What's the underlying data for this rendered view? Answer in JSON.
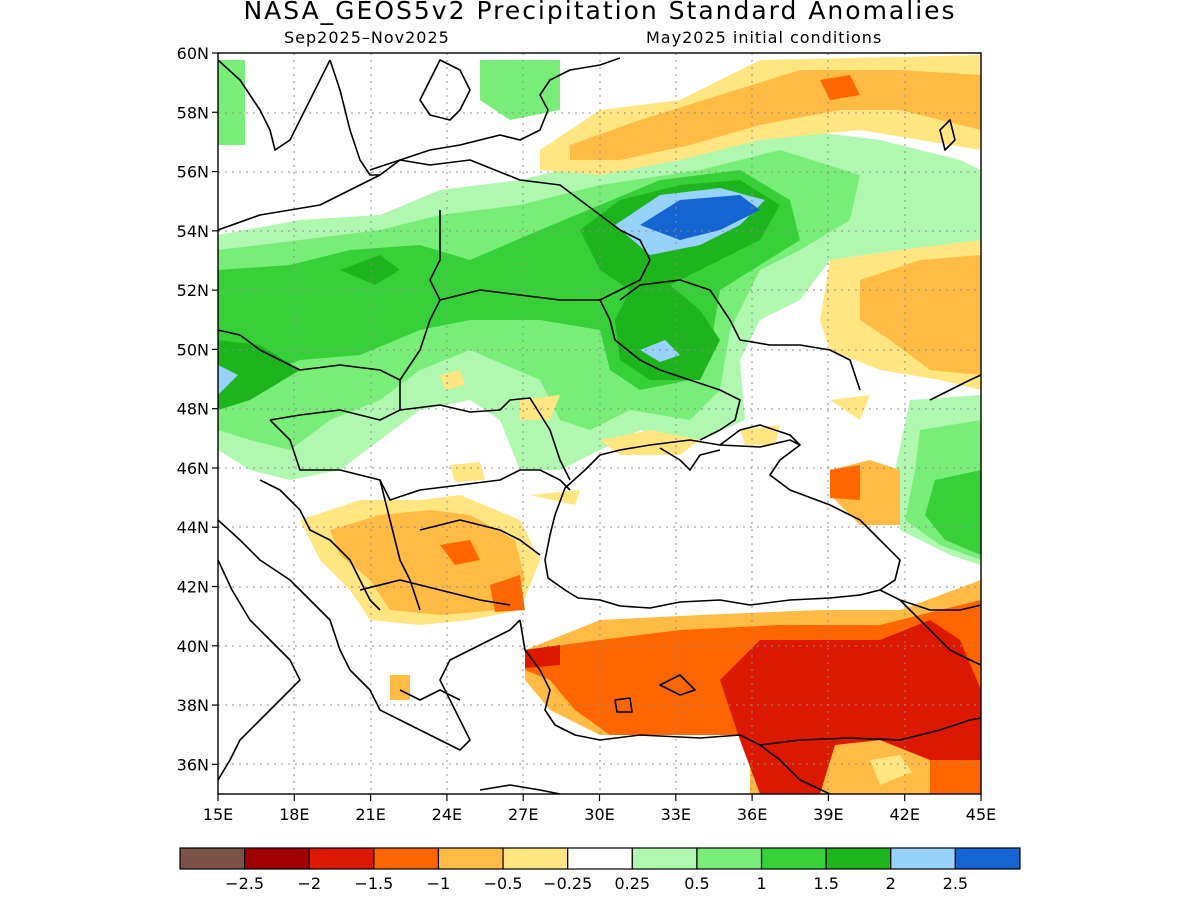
{
  "title": "NASA_GEOS5v2 Precipitation Standard Anomalies",
  "subtitle_left": "Sep2025–Nov2025",
  "subtitle_right": "May2025 initial conditions",
  "lon_ticks": [
    "15E",
    "18E",
    "21E",
    "24E",
    "27E",
    "30E",
    "33E",
    "36E",
    "39E",
    "42E",
    "45E"
  ],
  "lat_ticks": [
    "60N",
    "58N",
    "56N",
    "54N",
    "52N",
    "50N",
    "48N",
    "46N",
    "44N",
    "42N",
    "40N",
    "38N",
    "36N"
  ],
  "colorbar": {
    "colors": [
      "#7a5248",
      "#a00000",
      "#dd1800",
      "#ff6600",
      "#ffbb44",
      "#ffe680",
      "#ffffff",
      "#b0f7b0",
      "#78ee78",
      "#38d038",
      "#1eb41e",
      "#96d2fa",
      "#1464d2"
    ],
    "labels": [
      "−2.5",
      "−2",
      "−1.5",
      "−1",
      "−0.5",
      "−0.25",
      "0.25",
      "0.5",
      "1",
      "1.5",
      "2",
      "2.5"
    ]
  }
}
